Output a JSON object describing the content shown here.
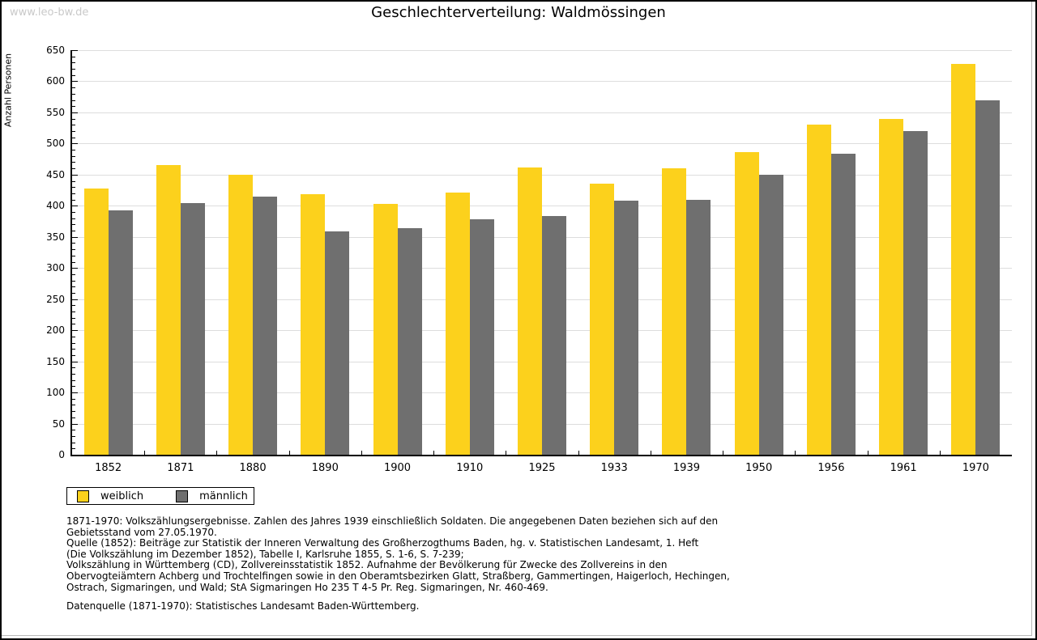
{
  "page": {
    "watermark": "www.leo-bw.de",
    "title": "Geschlechterverteilung: Waldmössingen"
  },
  "chart_data": {
    "type": "bar",
    "title": "Geschlechterverteilung: Waldmössingen",
    "xlabel": "",
    "ylabel": "Anzahl Personen",
    "ylim": [
      0,
      650
    ],
    "ytick_step": 50,
    "minor_tick_step": 10,
    "grid": true,
    "legend_position": "bottom-left",
    "categories": [
      "1852",
      "1871",
      "1880",
      "1890",
      "1900",
      "1910",
      "1925",
      "1933",
      "1939",
      "1950",
      "1956",
      "1961",
      "1970"
    ],
    "series": [
      {
        "name": "weiblich",
        "color": "#FCD11C",
        "values": [
          428,
          465,
          450,
          418,
          403,
          421,
          461,
          435,
          460,
          486,
          530,
          540,
          628
        ]
      },
      {
        "name": "männlich",
        "color": "#6F6F6F",
        "values": [
          393,
          404,
          415,
          359,
          364,
          378,
          384,
          408,
          409,
          450,
          483,
          520,
          570
        ]
      }
    ]
  },
  "footnotes": {
    "lines": [
      "1871-1970: Volkszählungsergebnisse. Zahlen des Jahres 1939 einschließlich Soldaten. Die angegebenen Daten beziehen sich auf den",
      "Gebietsstand vom 27.05.1970.",
      "Quelle (1852): Beiträge zur Statistik der Inneren Verwaltung des Großherzogthums Baden, hg. v. Statistischen Landesamt, 1. Heft",
      "(Die Volkszählung im Dezember 1852), Tabelle I, Karlsruhe 1855, S. 1-6, S. 7-239;",
      "Volkszählung in Württemberg (CD), Zollvereinsstatistik 1852. Aufnahme der Bevölkerung für Zwecke des Zollvereins in den",
      "Obervogteiämtern Achberg und Trochtelfingen sowie in den Oberamtsbezirken Glatt, Straßberg, Gammertingen, Haigerloch, Hechingen,",
      "Ostrach, Sigmaringen, und Wald; StA Sigmaringen Ho 235 T 4-5 Pr. Reg. Sigmaringen, Nr. 460-469."
    ],
    "datasource": "Datenquelle (1871-1970): Statistisches Landesamt Baden-Württemberg."
  },
  "colors": {
    "female": "#FCD11C",
    "male": "#6F6F6F",
    "grid": "#DDDDDD",
    "axis": "#000000",
    "watermark": "#C9C9C9"
  }
}
